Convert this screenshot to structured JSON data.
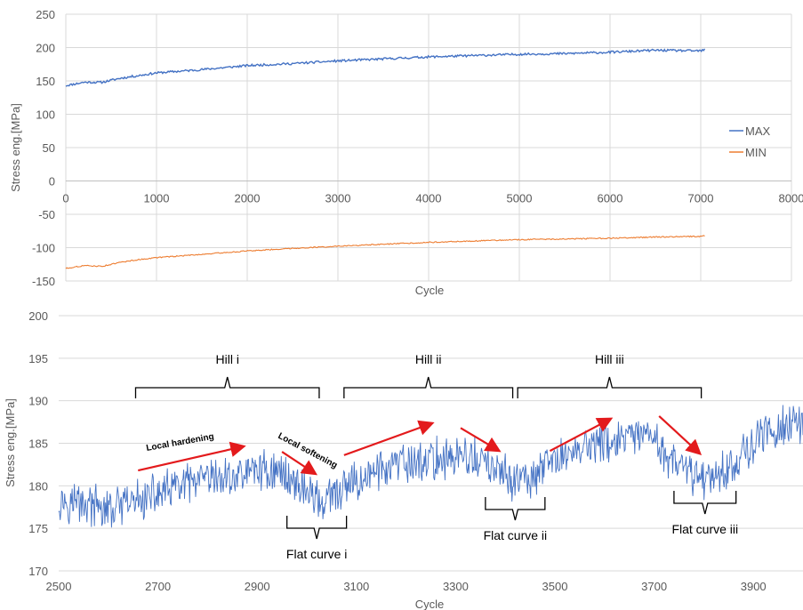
{
  "chart_data": [
    {
      "type": "line",
      "title": "",
      "xlabel": "Cycle",
      "ylabel": "Stress eng.[MPa]",
      "xlim": [
        0,
        8000
      ],
      "ylim": [
        -150,
        250
      ],
      "x_ticks": [
        "0",
        "1000",
        "2000",
        "3000",
        "4000",
        "5000",
        "6000",
        "7000",
        "8000"
      ],
      "y_ticks": [
        "-150",
        "-100",
        "-50",
        "0",
        "50",
        "100",
        "150",
        "200",
        "250"
      ],
      "grid": true,
      "legend_position": "right",
      "series": [
        {
          "name": "MAX",
          "color": "#4472c4",
          "x": [
            0,
            200,
            400,
            600,
            800,
            1000,
            1500,
            2000,
            2500,
            3000,
            3500,
            4000,
            4500,
            5000,
            5500,
            6000,
            6500,
            7000,
            7050
          ],
          "values": [
            143,
            148,
            148,
            154,
            158,
            162,
            167,
            173,
            176,
            180,
            183,
            186,
            188,
            190,
            191,
            193,
            196,
            195,
            197
          ]
        },
        {
          "name": "MIN",
          "color": "#ed7d31",
          "x": [
            0,
            200,
            400,
            600,
            800,
            1000,
            1500,
            2000,
            2500,
            3000,
            3500,
            4000,
            4500,
            5000,
            5500,
            6000,
            6500,
            7000,
            7050
          ],
          "values": [
            -131,
            -127,
            -128,
            -122,
            -118,
            -115,
            -110,
            -105,
            -101,
            -98,
            -95,
            -92,
            -90,
            -88,
            -87,
            -86,
            -84,
            -83,
            -82
          ]
        }
      ]
    },
    {
      "type": "line",
      "title": "",
      "xlabel": "Cycle",
      "ylabel": "Stress eng.[MPa]",
      "xlim": [
        2500,
        4000
      ],
      "ylim": [
        170,
        200
      ],
      "x_ticks": [
        "2500",
        "2700",
        "2900",
        "3100",
        "3300",
        "3500",
        "3700",
        "3900"
      ],
      "y_ticks": [
        "170",
        "175",
        "180",
        "185",
        "190",
        "195",
        "200"
      ],
      "grid": true,
      "series": [
        {
          "color": "#4472c4",
          "x": [
            2500,
            2550,
            2600,
            2650,
            2700,
            2750,
            2800,
            2850,
            2900,
            2950,
            3000,
            3030,
            3050,
            3100,
            3150,
            3200,
            3250,
            3300,
            3350,
            3400,
            3450,
            3500,
            3550,
            3600,
            3650,
            3700,
            3750,
            3800,
            3850,
            3900,
            3950,
            4000
          ],
          "values": [
            178.5,
            178,
            177,
            178,
            179,
            180,
            180.5,
            181,
            182,
            181.5,
            179.5,
            178,
            178.5,
            180.5,
            182,
            182.5,
            183,
            183.5,
            183,
            181,
            180.5,
            183,
            184.5,
            185,
            185.5,
            185.5,
            182,
            181,
            182,
            185,
            187,
            187
          ]
        }
      ],
      "annotations": {
        "hills": [
          {
            "label": "Hill i",
            "x_start": 2655,
            "x_end": 3025
          },
          {
            "label": "Hill ii",
            "x_start": 3075,
            "x_end": 3415
          },
          {
            "label": "Hill iii",
            "x_start": 3425,
            "x_end": 3795
          }
        ],
        "flat_curves": [
          {
            "label": "Flat curve i",
            "x_start": 2960,
            "x_end": 3080
          },
          {
            "label": "Flat curve ii",
            "x_start": 3360,
            "x_end": 3480
          },
          {
            "label": "Flat curve iii",
            "x_start": 3740,
            "x_end": 3865
          }
        ],
        "arrow_labels": [
          "Local hardening",
          "Local softening"
        ]
      }
    }
  ]
}
